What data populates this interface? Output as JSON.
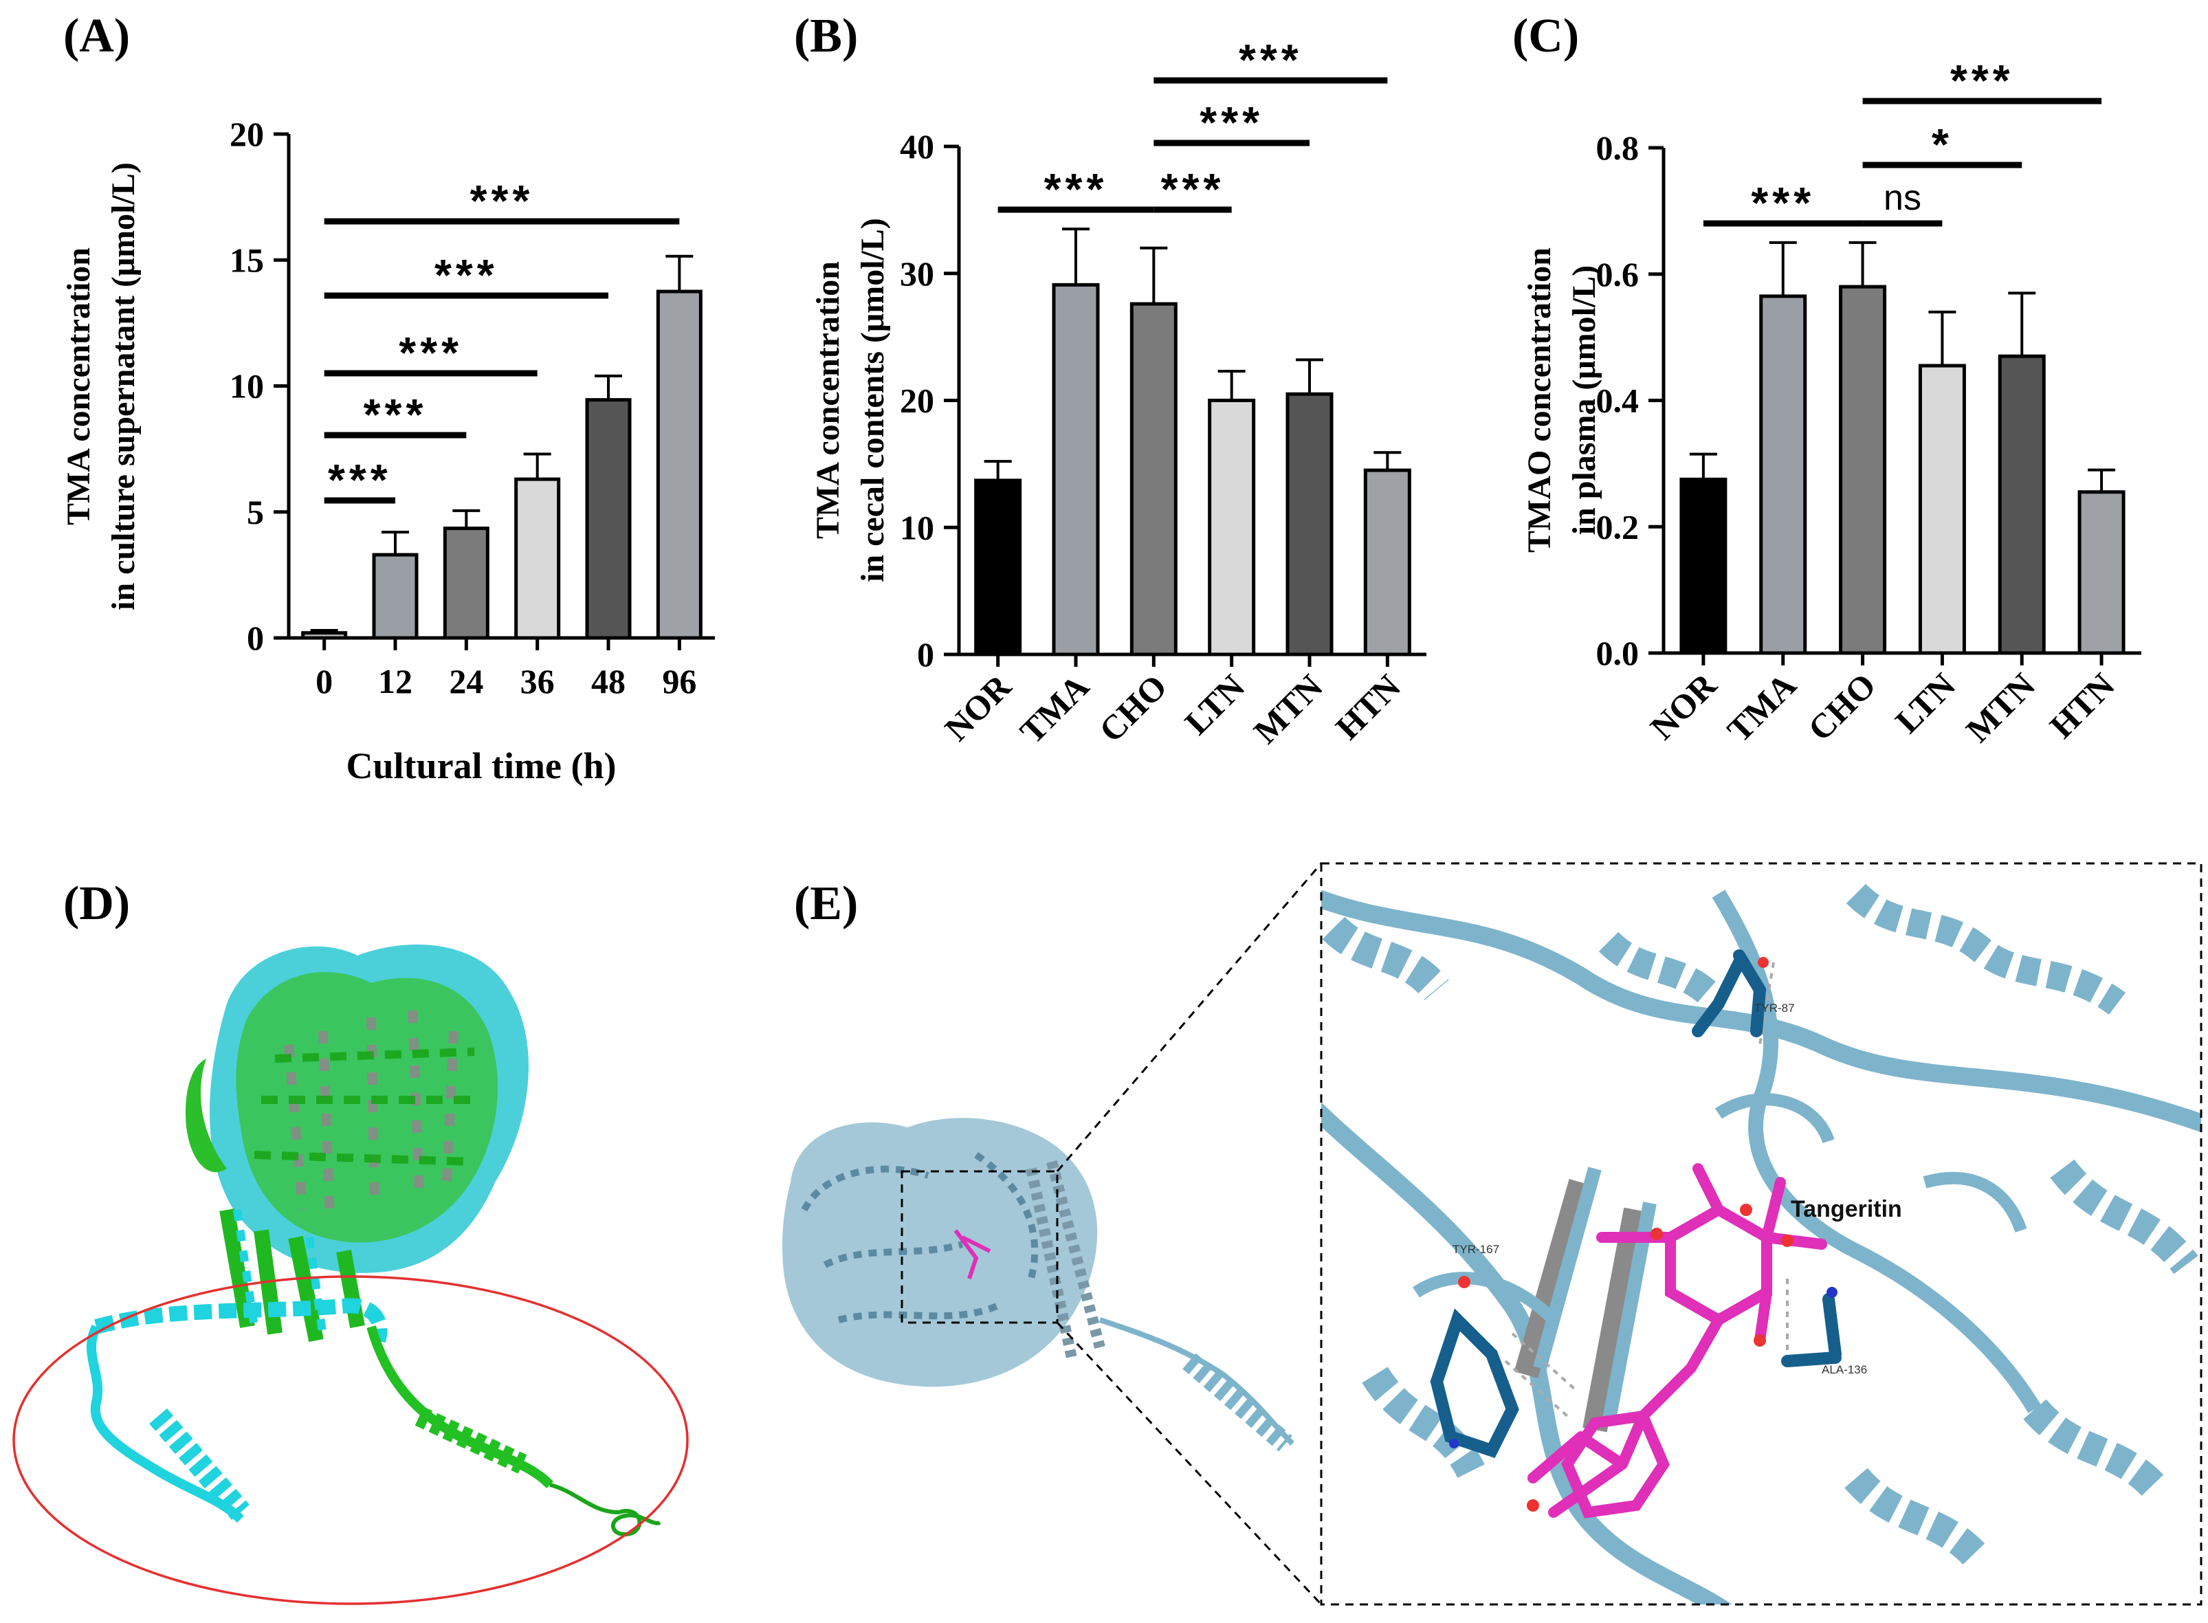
{
  "panel_labels": {
    "a": "(A)",
    "b": "(B)",
    "c": "(C)",
    "d": "(D)",
    "e": "(E)"
  },
  "chart_data": [
    {
      "type": "bar",
      "panel": "(A)",
      "categories": [
        "0",
        "12",
        "24",
        "36",
        "48",
        "96"
      ],
      "values": [
        0.2,
        3.3,
        4.35,
        6.3,
        9.45,
        13.75
      ],
      "errors": [
        0.1,
        0.9,
        0.7,
        1.0,
        0.95,
        1.4
      ],
      "colors": [
        "#c0c0c0",
        "#9a9ea5",
        "#7b7b7b",
        "#d9d9d9",
        "#555555",
        "#9ea1a6"
      ],
      "ylim": [
        0,
        20
      ],
      "yticks": [
        0,
        5,
        10,
        15,
        20
      ],
      "ylabel_line1": "TMA concentration",
      "ylabel_line2": "in culture supernatant (μmol/L)",
      "xlabel": "Cultural time (h)",
      "significance": [
        {
          "from": 0,
          "to": 1,
          "label": "***"
        },
        {
          "from": 0,
          "to": 2,
          "label": "***"
        },
        {
          "from": 0,
          "to": 3,
          "label": "***"
        },
        {
          "from": 0,
          "to": 4,
          "label": "***"
        },
        {
          "from": 0,
          "to": 5,
          "label": "***"
        }
      ]
    },
    {
      "type": "bar",
      "panel": "(B)",
      "categories": [
        "NOR",
        "TMA",
        "CHO",
        "LTN",
        "MTN",
        "HTN"
      ],
      "values": [
        13.7,
        29.1,
        27.6,
        20.0,
        20.5,
        14.5
      ],
      "errors": [
        1.5,
        4.4,
        4.4,
        2.3,
        2.7,
        1.4
      ],
      "colors": [
        "#000000",
        "#9a9ea5",
        "#7b7b7b",
        "#d9d9d9",
        "#555555",
        "#9ea1a6"
      ],
      "ylim": [
        0,
        40
      ],
      "yticks": [
        0,
        10,
        20,
        30,
        40
      ],
      "ylabel_line1": "TMA concentration",
      "ylabel_line2": "in cecal contents (μmol/L)",
      "significance": [
        {
          "from": 0,
          "to": 2,
          "label": "***"
        },
        {
          "from": 2,
          "to": 3,
          "label": "***"
        },
        {
          "from": 2,
          "to": 4,
          "label": "***"
        },
        {
          "from": 2,
          "to": 5,
          "label": "***"
        }
      ]
    },
    {
      "type": "bar",
      "panel": "(C)",
      "categories": [
        "NOR",
        "TMA",
        "CHO",
        "LTN",
        "MTN",
        "HTN"
      ],
      "values": [
        0.275,
        0.565,
        0.58,
        0.455,
        0.47,
        0.255
      ],
      "errors": [
        0.04,
        0.085,
        0.07,
        0.085,
        0.1,
        0.035
      ],
      "colors": [
        "#000000",
        "#9a9ea5",
        "#7b7b7b",
        "#d9d9d9",
        "#555555",
        "#9ea1a6"
      ],
      "ylim": [
        0,
        0.8
      ],
      "yticks": [
        0.0,
        0.2,
        0.4,
        0.6,
        0.8
      ],
      "ytick_labels": [
        "0.0",
        "0.2",
        "0.4",
        "0.6",
        "0.8"
      ],
      "ylabel_line1": "TMAO concentration",
      "ylabel_line2": "in plasma (μmol/L)",
      "significance": [
        {
          "from": 0,
          "to": 2,
          "label": "***"
        },
        {
          "from": 2,
          "to": 3,
          "label": "ns"
        },
        {
          "from": 2,
          "to": 4,
          "label": "*"
        },
        {
          "from": 2,
          "to": 5,
          "label": "***"
        }
      ]
    }
  ],
  "panel_e": {
    "ligand_label": "Tangeritin",
    "residues": [
      "TYR-87",
      "TYR-167",
      "ALA-136"
    ]
  },
  "colors": {
    "bar_stroke": "#000000",
    "cyan_model": "#1fd3df",
    "green_model": "#22c022",
    "helix_grey": "#8a8a8a",
    "protein_blue": "#7db4cc",
    "ligand_magenta": "#e02fb8",
    "residue_blue": "#165f8c",
    "ellipse_red": "#e53030",
    "zoom_box": "#000000"
  }
}
